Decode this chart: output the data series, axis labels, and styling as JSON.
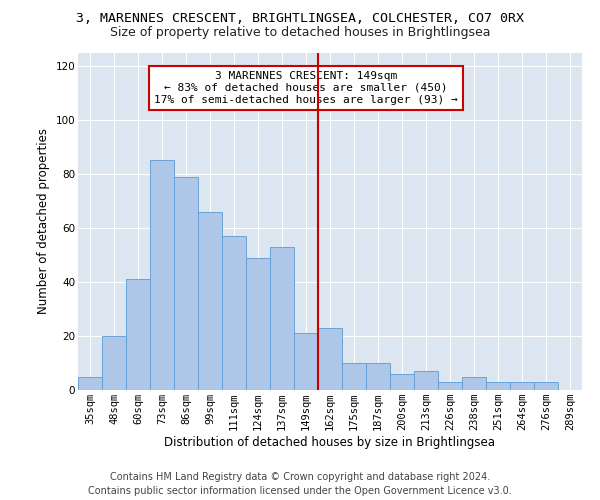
{
  "title": "3, MARENNES CRESCENT, BRIGHTLINGSEA, COLCHESTER, CO7 0RX",
  "subtitle": "Size of property relative to detached houses in Brightlingsea",
  "xlabel": "Distribution of detached houses by size in Brightlingsea",
  "ylabel": "Number of detached properties",
  "categories": [
    "35sqm",
    "48sqm",
    "60sqm",
    "73sqm",
    "86sqm",
    "99sqm",
    "111sqm",
    "124sqm",
    "137sqm",
    "149sqm",
    "162sqm",
    "175sqm",
    "187sqm",
    "200sqm",
    "213sqm",
    "226sqm",
    "238sqm",
    "251sqm",
    "264sqm",
    "276sqm",
    "289sqm"
  ],
  "values": [
    5,
    20,
    41,
    85,
    79,
    66,
    57,
    49,
    53,
    21,
    23,
    10,
    10,
    6,
    7,
    3,
    5,
    3,
    3,
    3,
    0
  ],
  "bar_color": "#aec6e8",
  "bar_edge_color": "#5b9bd5",
  "vline_color": "#cc0000",
  "annotation_text": "3 MARENNES CRESCENT: 149sqm\n← 83% of detached houses are smaller (450)\n17% of semi-detached houses are larger (93) →",
  "annotation_box_color": "#ffffff",
  "annotation_box_edge_color": "#cc0000",
  "ylim": [
    0,
    125
  ],
  "yticks": [
    0,
    20,
    40,
    60,
    80,
    100,
    120
  ],
  "background_color": "#dce6f1",
  "footer_line1": "Contains HM Land Registry data © Crown copyright and database right 2024.",
  "footer_line2": "Contains public sector information licensed under the Open Government Licence v3.0.",
  "title_fontsize": 9.5,
  "subtitle_fontsize": 9,
  "axis_label_fontsize": 8.5,
  "tick_fontsize": 7.5,
  "annotation_fontsize": 8,
  "footer_fontsize": 7
}
